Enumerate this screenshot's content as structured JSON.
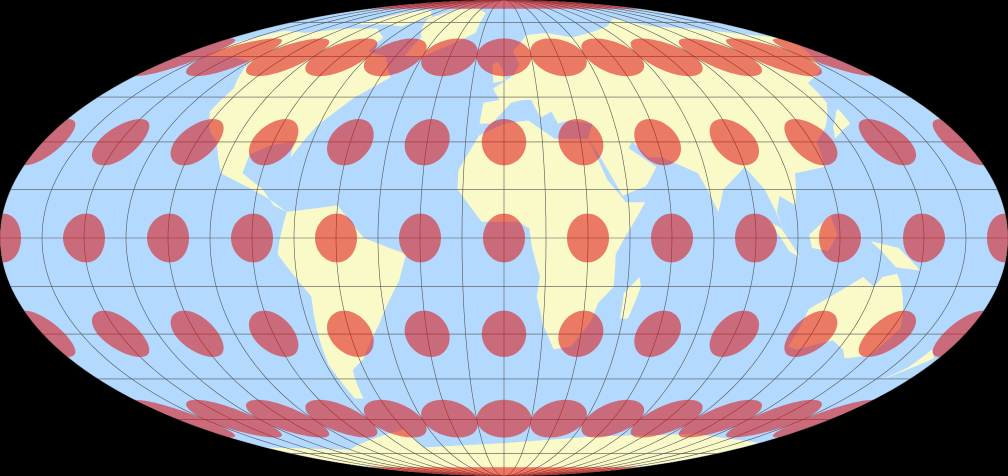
{
  "map": {
    "projection": "Mollweide",
    "colors": {
      "background": "#000000",
      "ocean": "#b3d9ff",
      "land": "#fafac8",
      "graticule": "#555555",
      "indicatrix": "#dd1111"
    },
    "graticule_step_deg": 15,
    "indicatrix": {
      "lon_step_deg": 30,
      "lat_step_deg": 30,
      "radius_deg": 7.5,
      "opacity": 0.55
    }
  }
}
